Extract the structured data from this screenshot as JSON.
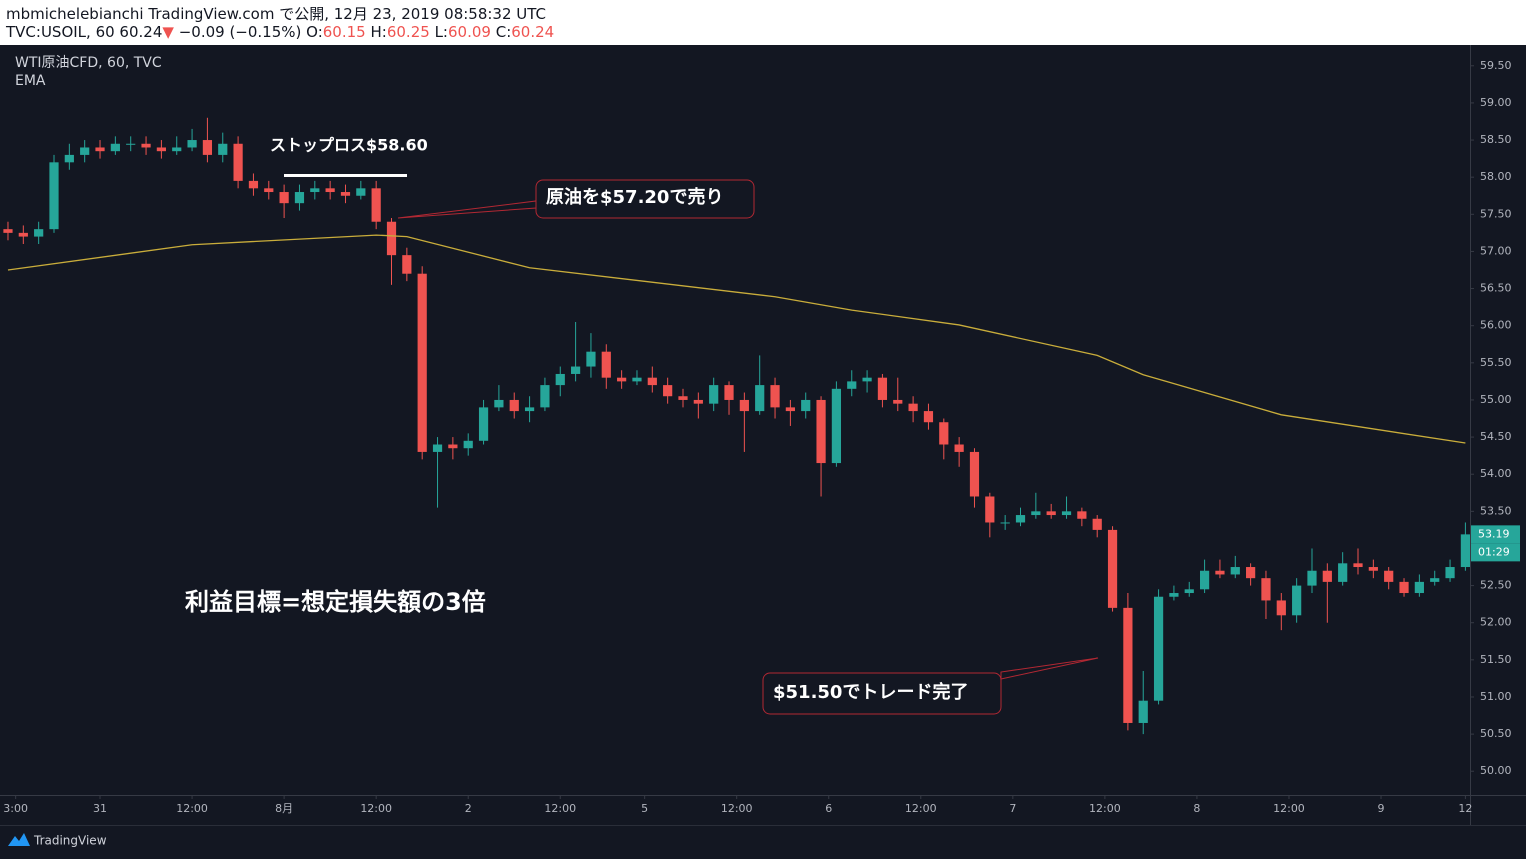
{
  "header": {
    "published": "mbmichelebianchi TradingView.com で公開, 12月 23, 2019 08:58:32 UTC",
    "symbol": "TVC:USOIL, 60 60.24",
    "arrow": "▼",
    "change": "−0.09 (−0.15%)",
    "o_label": "O:",
    "o": "60.15",
    "h_label": "H:",
    "h": "60.25",
    "l_label": "L:",
    "l": "60.09",
    "c_label": "C:",
    "c": "60.24"
  },
  "chart_data": {
    "type": "candlestick",
    "grid": false,
    "x": [
      0,
      2,
      4,
      6,
      8,
      10,
      12,
      14,
      16,
      18,
      20,
      22,
      24,
      26,
      28,
      30,
      32,
      34,
      36,
      38,
      40,
      42,
      44,
      46,
      48,
      50,
      52,
      54,
      56,
      58,
      60,
      62,
      64,
      66,
      68,
      70,
      72,
      74,
      76,
      78,
      80,
      82,
      84,
      86,
      88,
      90,
      92,
      94,
      96,
      98,
      100,
      102,
      104,
      106,
      108,
      110,
      112,
      114,
      116,
      118,
      120,
      122,
      124,
      126,
      128,
      130,
      132,
      134,
      136,
      138,
      140,
      142,
      144,
      146,
      148,
      150,
      152,
      154,
      156,
      158,
      160,
      162,
      164,
      166,
      168,
      170,
      172,
      174,
      176,
      178,
      180,
      182,
      184,
      186,
      188,
      190
    ],
    "series": [
      {
        "name": "WTI原油CFD, 60, TVC",
        "type": "candlestick",
        "up_color": "#26a69a",
        "down_color": "#ef5350",
        "open": [
          57.3,
          57.25,
          57.2,
          57.3,
          58.2,
          58.3,
          58.4,
          58.35,
          58.45,
          58.45,
          58.4,
          58.35,
          58.4,
          58.5,
          58.3,
          58.45,
          57.95,
          57.85,
          57.8,
          57.65,
          57.8,
          57.85,
          57.8,
          57.75,
          57.85,
          57.4,
          56.95,
          56.7,
          54.3,
          54.4,
          54.35,
          54.45,
          54.9,
          55.0,
          54.85,
          54.9,
          55.2,
          55.35,
          55.45,
          55.65,
          55.3,
          55.25,
          55.3,
          55.2,
          55.05,
          55.0,
          54.95,
          55.2,
          55.0,
          54.85,
          55.2,
          54.9,
          54.85,
          55.0,
          54.15,
          55.15,
          55.25,
          55.3,
          55.0,
          54.95,
          54.85,
          54.7,
          54.4,
          54.3,
          53.7,
          53.35,
          53.35,
          53.45,
          53.5,
          53.45,
          53.5,
          53.4,
          53.25,
          52.2,
          50.65,
          50.95,
          52.35,
          52.4,
          52.45,
          52.7,
          52.65,
          52.75,
          52.6,
          52.3,
          52.1,
          52.5,
          52.7,
          52.55,
          52.8,
          52.75,
          52.7,
          52.55,
          52.4,
          52.55,
          52.6,
          52.75
        ],
        "high": [
          57.4,
          57.35,
          57.4,
          58.3,
          58.45,
          58.5,
          58.5,
          58.55,
          58.55,
          58.55,
          58.5,
          58.55,
          58.65,
          58.8,
          58.6,
          58.55,
          58.05,
          57.95,
          57.9,
          57.9,
          57.95,
          57.95,
          57.9,
          57.95,
          57.95,
          57.45,
          57.05,
          56.8,
          54.5,
          54.5,
          54.55,
          55.0,
          55.2,
          55.1,
          55.05,
          55.3,
          55.45,
          56.05,
          55.9,
          55.75,
          55.4,
          55.4,
          55.45,
          55.3,
          55.15,
          55.1,
          55.3,
          55.25,
          55.1,
          55.6,
          55.3,
          55.0,
          55.1,
          55.05,
          55.25,
          55.4,
          55.4,
          55.35,
          55.3,
          55.05,
          54.95,
          54.75,
          54.5,
          54.35,
          53.75,
          53.45,
          53.55,
          53.75,
          53.6,
          53.7,
          53.55,
          53.45,
          53.3,
          52.4,
          51.35,
          52.45,
          52.5,
          52.55,
          52.85,
          52.85,
          52.9,
          52.8,
          52.7,
          52.4,
          52.6,
          53.0,
          52.8,
          52.95,
          53.0,
          52.85,
          52.75,
          52.6,
          52.65,
          52.7,
          52.85,
          53.35
        ],
        "low": [
          57.15,
          57.1,
          57.1,
          57.25,
          58.1,
          58.2,
          58.25,
          58.3,
          58.35,
          58.3,
          58.25,
          58.3,
          58.35,
          58.2,
          58.2,
          57.85,
          57.75,
          57.7,
          57.45,
          57.55,
          57.7,
          57.7,
          57.65,
          57.7,
          57.3,
          56.55,
          56.6,
          54.2,
          53.55,
          54.2,
          54.25,
          54.4,
          54.85,
          54.75,
          54.7,
          54.85,
          55.05,
          55.25,
          55.3,
          55.15,
          55.15,
          55.2,
          55.1,
          54.95,
          54.9,
          54.75,
          54.85,
          54.8,
          54.3,
          54.8,
          54.75,
          54.65,
          54.75,
          53.7,
          54.1,
          55.05,
          55.1,
          54.9,
          54.85,
          54.7,
          54.6,
          54.2,
          54.1,
          53.55,
          53.15,
          53.25,
          53.3,
          53.4,
          53.4,
          53.4,
          53.3,
          53.15,
          52.15,
          50.55,
          50.5,
          50.9,
          52.3,
          52.35,
          52.4,
          52.6,
          52.6,
          52.5,
          52.05,
          51.9,
          52.0,
          52.4,
          52.0,
          52.5,
          52.65,
          52.6,
          52.45,
          52.35,
          52.35,
          52.5,
          52.55,
          52.7
        ],
        "close": [
          57.25,
          57.2,
          57.3,
          58.2,
          58.3,
          58.4,
          58.35,
          58.45,
          58.45,
          58.4,
          58.35,
          58.4,
          58.5,
          58.3,
          58.45,
          57.95,
          57.85,
          57.8,
          57.65,
          57.8,
          57.85,
          57.8,
          57.75,
          57.85,
          57.4,
          56.95,
          56.7,
          54.3,
          54.4,
          54.35,
          54.45,
          54.9,
          55.0,
          54.85,
          54.9,
          55.2,
          55.35,
          55.45,
          55.65,
          55.3,
          55.25,
          55.3,
          55.2,
          55.05,
          55.0,
          54.95,
          55.2,
          55.0,
          54.85,
          55.2,
          54.9,
          54.85,
          55.0,
          54.15,
          55.15,
          55.25,
          55.3,
          55.0,
          54.95,
          54.85,
          54.7,
          54.4,
          54.3,
          53.7,
          53.35,
          53.35,
          53.45,
          53.5,
          53.45,
          53.5,
          53.4,
          53.25,
          52.2,
          50.65,
          50.95,
          52.35,
          52.4,
          52.45,
          52.7,
          52.65,
          52.75,
          52.6,
          52.3,
          52.1,
          52.5,
          52.7,
          52.55,
          52.8,
          52.75,
          52.7,
          52.55,
          52.4,
          52.55,
          52.6,
          52.75,
          53.19
        ]
      },
      {
        "name": "EMA",
        "type": "line",
        "color": "#c9ad3b",
        "x": [
          0,
          24,
          48,
          52,
          68,
          100,
          110,
          124,
          142,
          148,
          166,
          190
        ],
        "values": [
          56.75,
          57.09,
          57.22,
          57.2,
          56.78,
          56.39,
          56.21,
          56.01,
          55.6,
          55.34,
          54.8,
          54.42
        ]
      }
    ],
    "xlim": [
      -1.04,
      190.6
    ],
    "xticks": [
      {
        "value": 1,
        "label": "3:00"
      },
      {
        "value": 12,
        "label": "31"
      },
      {
        "value": 24,
        "label": "12:00"
      },
      {
        "value": 36,
        "label": "8月"
      },
      {
        "value": 48,
        "label": "12:00"
      },
      {
        "value": 60,
        "label": "2"
      },
      {
        "value": 72,
        "label": "12:00"
      },
      {
        "value": 83,
        "label": "5"
      },
      {
        "value": 95,
        "label": "12:00"
      },
      {
        "value": 107,
        "label": "6"
      },
      {
        "value": 119,
        "label": "12:00"
      },
      {
        "value": 131,
        "label": "7"
      },
      {
        "value": 143,
        "label": "12:00"
      },
      {
        "value": 155,
        "label": "8"
      },
      {
        "value": 167,
        "label": "12:00"
      },
      {
        "value": 179,
        "label": "9"
      },
      {
        "value": 190,
        "label": "12"
      }
    ],
    "ylim": [
      49.68,
      59.78
    ],
    "yticks": [
      {
        "value": 50,
        "label": "50.00"
      },
      {
        "value": 50.5,
        "label": "50.50"
      },
      {
        "value": 51,
        "label": "51.00"
      },
      {
        "value": 51.5,
        "label": "51.50"
      },
      {
        "value": 52,
        "label": "52.00"
      },
      {
        "value": 52.5,
        "label": "52.50"
      },
      {
        "value": 53,
        "label": "53.00"
      },
      {
        "value": 53.5,
        "label": "53.50"
      },
      {
        "value": 54,
        "label": "54.00"
      },
      {
        "value": 54.5,
        "label": "54.50"
      },
      {
        "value": 55,
        "label": "55.00"
      },
      {
        "value": 55.5,
        "label": "55.50"
      },
      {
        "value": 56,
        "label": "56.00"
      },
      {
        "value": 56.5,
        "label": "56.50"
      },
      {
        "value": 57,
        "label": "57.00"
      },
      {
        "value": 57.5,
        "label": "57.50"
      },
      {
        "value": 58,
        "label": "58.00"
      },
      {
        "value": 58.5,
        "label": "58.50"
      },
      {
        "value": 59,
        "label": "59.00"
      },
      {
        "value": 59.5,
        "label": "59.50"
      }
    ],
    "countdown": "01:29",
    "annotations": [
      "ストップロス$58.60",
      "原油を$57.20で売り",
      "$51.50でトレード完了",
      "利益目標=想定損失額の3倍"
    ]
  },
  "footer": {
    "brand": "TradingView"
  }
}
